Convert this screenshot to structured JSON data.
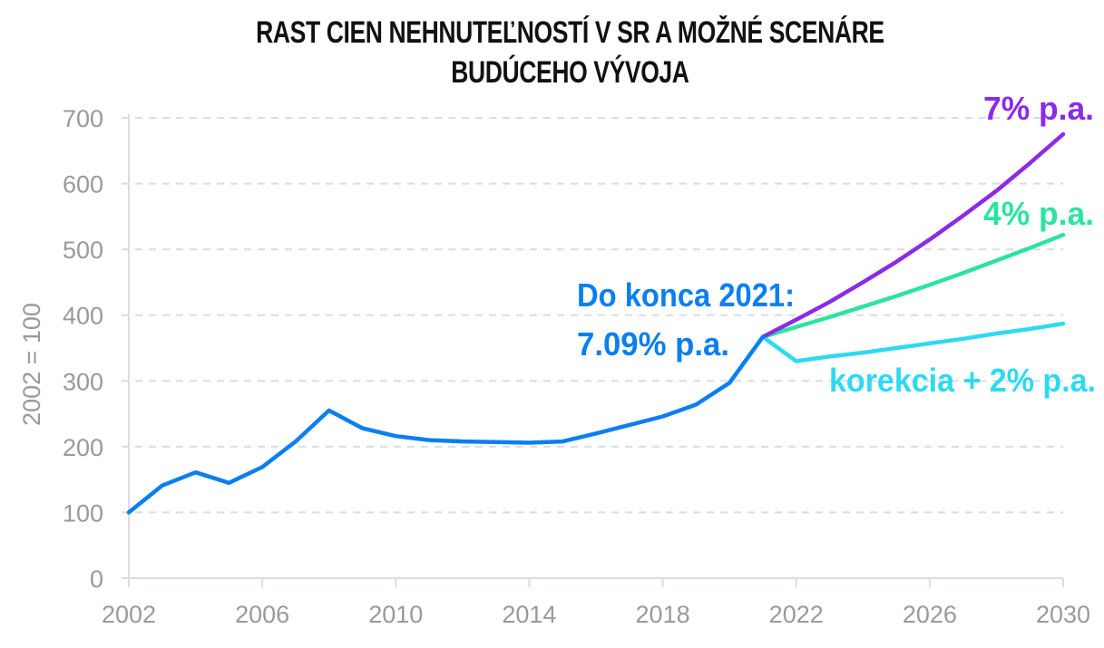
{
  "title_line1": "RAST CIEN NEHNUTEĽNOSTÍ V SR A MOŽNÉ SCENÁRE",
  "title_line2": "BUDÚCEHO VÝVOJA",
  "chart_data": {
    "type": "line",
    "title": "RAST CIEN NEHNUTEĽNOSTÍ V SR A MOŽNÉ SCENÁRE BUDÚCEHO VÝVOJA",
    "xlabel": "",
    "ylabel": "2002 = 100",
    "xlim": [
      2002,
      2030
    ],
    "ylim": [
      0,
      700
    ],
    "xticks": [
      "2002",
      "2006",
      "2010",
      "2014",
      "2018",
      "2022",
      "2026",
      "2030"
    ],
    "yticks": [
      "0",
      "100",
      "200",
      "300",
      "400",
      "500",
      "600",
      "700"
    ],
    "grid": "horizontal dashed",
    "legend": "inline annotations",
    "series": [
      {
        "name": "Historical (Do konca 2021: 7.09% p.a.)",
        "color": "#0A7FF0",
        "x": [
          2002,
          2003,
          2004,
          2005,
          2006,
          2007,
          2008,
          2009,
          2010,
          2011,
          2012,
          2013,
          2014,
          2015,
          2016,
          2017,
          2018,
          2019,
          2020,
          2021
        ],
        "values": [
          100,
          141,
          161,
          145,
          169,
          208,
          255,
          228,
          216,
          210,
          208,
          207,
          206,
          208,
          220,
          233,
          246,
          264,
          297,
          367
        ]
      },
      {
        "name": "7% p.a.",
        "color": "#8A2BE8",
        "x": [
          2021,
          2022,
          2023,
          2024,
          2025,
          2026,
          2027,
          2028,
          2029,
          2030
        ],
        "values": [
          367,
          393,
          420,
          450,
          481,
          515,
          551,
          589,
          631,
          675
        ]
      },
      {
        "name": "4% p.a.",
        "color": "#2DE3A0",
        "x": [
          2021,
          2022,
          2023,
          2024,
          2025,
          2026,
          2027,
          2028,
          2029,
          2030
        ],
        "values": [
          367,
          382,
          397,
          413,
          429,
          446,
          464,
          483,
          502,
          522
        ]
      },
      {
        "name": "korekcia + 2% p.a.",
        "color": "#2ED9F2",
        "x": [
          2021,
          2022,
          2023,
          2024,
          2025,
          2026,
          2027,
          2028,
          2029,
          2030
        ],
        "values": [
          367,
          330,
          337,
          343,
          350,
          357,
          364,
          372,
          379,
          387
        ]
      }
    ],
    "annotations": [
      {
        "text_line1": "Do konca 2021:",
        "text_line2": "7.09% p.a.",
        "color": "#0A7FF0"
      },
      {
        "text": "7% p.a.",
        "color": "#8A2BE8"
      },
      {
        "text": "4% p.a.",
        "color": "#2DE3A0"
      },
      {
        "text": "korekcia + 2% p.a.",
        "color": "#2ED9F2"
      }
    ]
  },
  "colors": {
    "axis": "#d8dde8",
    "grid": "#d8dde8",
    "tick_text": "#9a9a9a",
    "title": "#111111"
  }
}
